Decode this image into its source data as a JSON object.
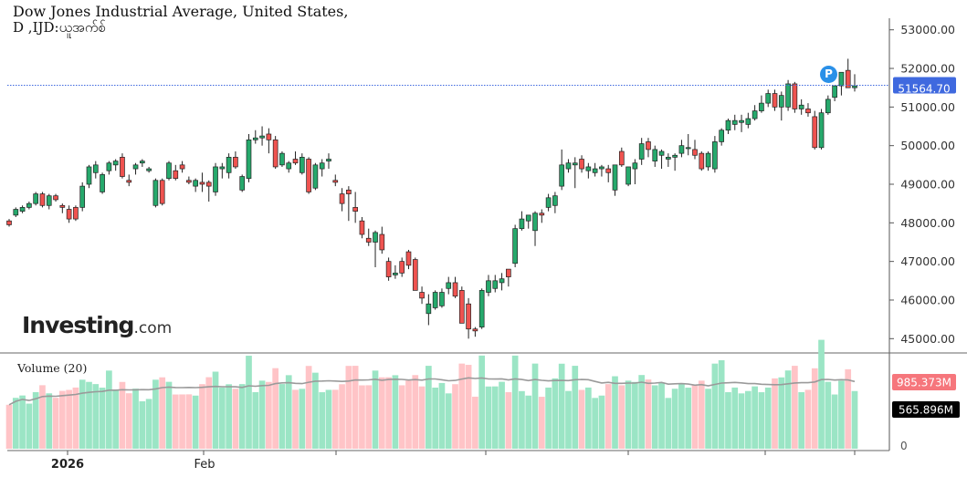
{
  "header": {
    "title": "Dow Jones Industrial Average, United States,",
    "subtitle": "D ,IJD:ယူအက်စ်"
  },
  "logo": {
    "brand": "Investing",
    "suffix": ".com"
  },
  "marker": {
    "label": "P"
  },
  "volume_panel": {
    "label": "Volume (20)",
    "badge_high": "985.373M",
    "badge_avg": "565.896M",
    "zero_label": "0"
  },
  "colors": {
    "up": "#26a96c",
    "down": "#ef5350",
    "vol_up": "#9be5c5",
    "vol_down": "#ffc4c7",
    "price_badge": "#3f69df",
    "high_badge": "#f6767c",
    "avg_badge": "#000000",
    "ma_line": "#9a9a9a"
  },
  "chart_data": [
    {
      "type": "candlestick",
      "title": "Dow Jones Industrial Average, United States,",
      "ylim": [
        44700,
        53300
      ],
      "yticks": [
        "53000.00",
        "52000.00",
        "51000.00",
        "50000.00",
        "49000.00",
        "48000.00",
        "47000.00",
        "46000.00",
        "45000.00"
      ],
      "xlabels": [
        "2026",
        "Feb"
      ],
      "last_price": "51564.70",
      "ohlc": [
        [
          48050,
          48100,
          47900,
          47950
        ],
        [
          48200,
          48400,
          48150,
          48350
        ],
        [
          48300,
          48450,
          48250,
          48400
        ],
        [
          48400,
          48550,
          48350,
          48500
        ],
        [
          48500,
          48800,
          48450,
          48750
        ],
        [
          48750,
          48800,
          48400,
          48450
        ],
        [
          48450,
          48750,
          48350,
          48700
        ],
        [
          48700,
          48750,
          48550,
          48600
        ],
        [
          48450,
          48500,
          48250,
          48400
        ],
        [
          48350,
          48450,
          48000,
          48100
        ],
        [
          48400,
          48450,
          48050,
          48100
        ],
        [
          48400,
          49050,
          48300,
          48950
        ],
        [
          49000,
          49500,
          48900,
          49450
        ],
        [
          49300,
          49600,
          49150,
          49500
        ],
        [
          48800,
          49300,
          48750,
          49250
        ],
        [
          49350,
          49600,
          49250,
          49550
        ],
        [
          49500,
          49650,
          49350,
          49600
        ],
        [
          49700,
          49800,
          49150,
          49200
        ],
        [
          49100,
          49250,
          48950,
          49050
        ],
        [
          49400,
          49550,
          49250,
          49500
        ],
        [
          49550,
          49650,
          49450,
          49600
        ],
        [
          49350,
          49450,
          49300,
          49400
        ],
        [
          48450,
          49150,
          48400,
          49100
        ],
        [
          49100,
          49150,
          48450,
          48500
        ],
        [
          49150,
          49600,
          49100,
          49550
        ],
        [
          49350,
          49500,
          49100,
          49150
        ],
        [
          49500,
          49600,
          49300,
          49400
        ],
        [
          49100,
          49200,
          49000,
          49050
        ],
        [
          48950,
          49150,
          48800,
          49100
        ],
        [
          49050,
          49300,
          48800,
          49000
        ],
        [
          49050,
          49100,
          48550,
          48950
        ],
        [
          48800,
          49550,
          48700,
          49450
        ],
        [
          49400,
          49550,
          49150,
          49450
        ],
        [
          49300,
          49800,
          49150,
          49700
        ],
        [
          49700,
          49850,
          49400,
          49450
        ],
        [
          48850,
          49250,
          48800,
          49200
        ],
        [
          49150,
          50300,
          49050,
          50150
        ],
        [
          50150,
          50400,
          50050,
          50200
        ],
        [
          50200,
          50500,
          50000,
          50250
        ],
        [
          50300,
          50450,
          49800,
          50150
        ],
        [
          50150,
          50250,
          49400,
          49450
        ],
        [
          49500,
          49850,
          49450,
          49800
        ],
        [
          49400,
          49600,
          49300,
          49550
        ],
        [
          49650,
          49850,
          49500,
          49550
        ],
        [
          49300,
          49800,
          49250,
          49700
        ],
        [
          49650,
          49700,
          48750,
          48800
        ],
        [
          48900,
          49550,
          48850,
          49500
        ],
        [
          49400,
          49650,
          49200,
          49550
        ],
        [
          49600,
          49800,
          49400,
          49650
        ],
        [
          49100,
          49250,
          48950,
          49050
        ],
        [
          48750,
          48900,
          48300,
          48500
        ],
        [
          48850,
          48950,
          48050,
          48750
        ],
        [
          48400,
          48800,
          48000,
          48300
        ],
        [
          48050,
          48150,
          47600,
          47700
        ],
        [
          47600,
          47850,
          47400,
          47500
        ],
        [
          47500,
          47800,
          46850,
          47750
        ],
        [
          47700,
          47900,
          47200,
          47300
        ],
        [
          47000,
          47100,
          46500,
          46600
        ],
        [
          46650,
          46900,
          46550,
          46700
        ],
        [
          47000,
          47100,
          46600,
          46700
        ],
        [
          47250,
          47300,
          46800,
          46900
        ],
        [
          47050,
          47100,
          46300,
          46250
        ],
        [
          46200,
          46350,
          45900,
          46050
        ],
        [
          45650,
          46150,
          45350,
          45900
        ],
        [
          45800,
          46250,
          45750,
          46200
        ],
        [
          45850,
          46300,
          45800,
          46200
        ],
        [
          46300,
          46600,
          46150,
          46450
        ],
        [
          46450,
          46600,
          46050,
          46100
        ],
        [
          46250,
          46350,
          45450,
          45400
        ],
        [
          45900,
          46050,
          45000,
          45250
        ],
        [
          45250,
          45300,
          45050,
          45200
        ],
        [
          45300,
          46300,
          45250,
          46250
        ],
        [
          46200,
          46650,
          46100,
          46500
        ],
        [
          46300,
          46650,
          46200,
          46500
        ],
        [
          46450,
          46700,
          46250,
          46550
        ],
        [
          46800,
          46750,
          46350,
          46600
        ],
        [
          46950,
          47950,
          46850,
          47850
        ],
        [
          47850,
          48300,
          47800,
          48100
        ],
        [
          48050,
          48150,
          47850,
          48200
        ],
        [
          47800,
          48300,
          47400,
          48250
        ],
        [
          48250,
          48350,
          48000,
          48200
        ],
        [
          48400,
          48750,
          48300,
          48650
        ],
        [
          48450,
          48800,
          48250,
          48700
        ],
        [
          48950,
          49900,
          48850,
          49500
        ],
        [
          49400,
          49650,
          49300,
          49550
        ],
        [
          49500,
          49700,
          48900,
          49550
        ],
        [
          49650,
          49750,
          49300,
          49400
        ],
        [
          49350,
          49550,
          49150,
          49450
        ],
        [
          49300,
          49550,
          49200,
          49400
        ],
        [
          49400,
          49500,
          49200,
          49450
        ],
        [
          49400,
          49500,
          49050,
          49300
        ],
        [
          48850,
          49500,
          48700,
          49500
        ],
        [
          49850,
          49950,
          49450,
          49500
        ],
        [
          49000,
          49450,
          48950,
          49450
        ],
        [
          49400,
          49650,
          49000,
          49550
        ],
        [
          49650,
          50200,
          49500,
          50050
        ],
        [
          50100,
          50200,
          49700,
          49900
        ],
        [
          49600,
          50000,
          49450,
          49900
        ],
        [
          49750,
          49900,
          49400,
          49850
        ],
        [
          49650,
          49800,
          49450,
          49700
        ],
        [
          49700,
          49800,
          49350,
          49750
        ],
        [
          49800,
          50150,
          49700,
          50000
        ],
        [
          49950,
          50300,
          49750,
          49950
        ],
        [
          49900,
          50150,
          49650,
          49750
        ],
        [
          49800,
          49850,
          49350,
          49400
        ],
        [
          49450,
          49850,
          49350,
          49800
        ],
        [
          49400,
          50250,
          49300,
          50100
        ],
        [
          50100,
          50450,
          50000,
          50400
        ],
        [
          50400,
          50700,
          50300,
          50650
        ],
        [
          50550,
          50800,
          50400,
          50650
        ],
        [
          50600,
          50800,
          50350,
          50650
        ],
        [
          50550,
          50850,
          50450,
          50700
        ],
        [
          50700,
          51050,
          50650,
          50900
        ],
        [
          50900,
          51300,
          50850,
          51100
        ],
        [
          51100,
          51450,
          51000,
          51350
        ],
        [
          51350,
          51450,
          50900,
          51000
        ],
        [
          51000,
          51400,
          50650,
          51300
        ],
        [
          51000,
          51700,
          50900,
          51600
        ],
        [
          51600,
          51650,
          50850,
          50950
        ],
        [
          50950,
          51200,
          50800,
          51050
        ],
        [
          50950,
          51100,
          50750,
          50850
        ],
        [
          50750,
          50900,
          49900,
          49950
        ],
        [
          49950,
          50950,
          49900,
          50850
        ],
        [
          50850,
          51300,
          50800,
          51200
        ],
        [
          51250,
          51550,
          51150,
          51550
        ],
        [
          51550,
          51900,
          51300,
          51900
        ],
        [
          51950,
          52250,
          51500,
          51500
        ],
        [
          51500,
          51850,
          51400,
          51550
        ]
      ],
      "volume_axis_max": 1100
    }
  ]
}
